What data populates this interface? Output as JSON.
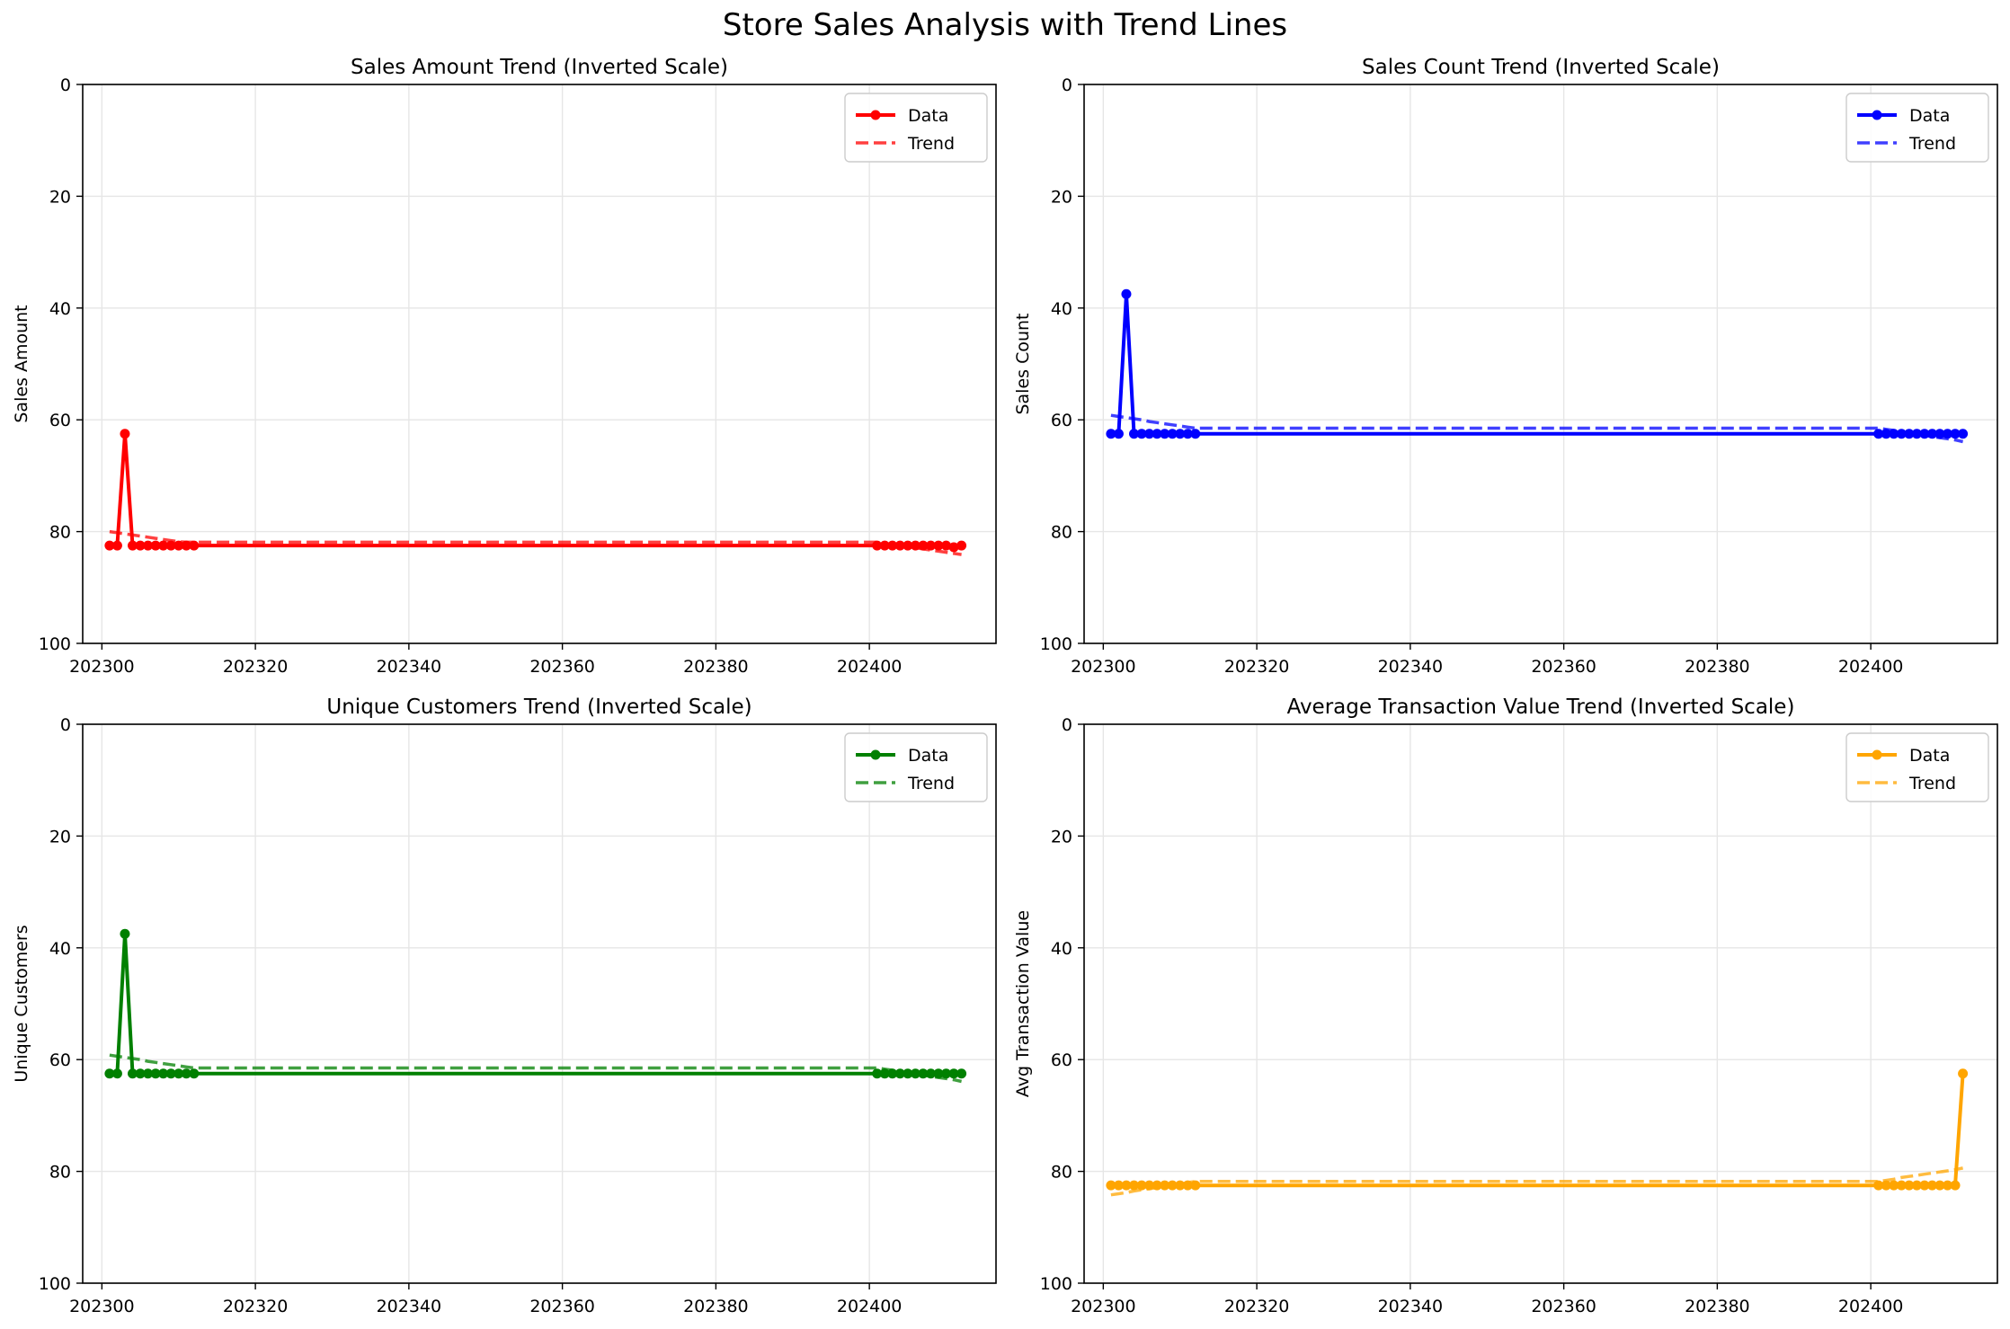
{
  "figure": {
    "title": "Store Sales Analysis with Trend Lines"
  },
  "chart_data": [
    {
      "type": "line",
      "title": "Sales Amount Trend (Inverted Scale)",
      "xlabel": "",
      "ylabel": "Sales Amount",
      "ylim": [
        100,
        0
      ],
      "y_inverted": true,
      "xlim": [
        202297.5,
        202416.5
      ],
      "xticks": [
        202300,
        202320,
        202340,
        202360,
        202380,
        202400
      ],
      "yticks": [
        0,
        20,
        40,
        60,
        80,
        100
      ],
      "grid": true,
      "legend": "top-right",
      "color": "#ff0000",
      "series": [
        {
          "name": "Data",
          "style": "solid-markers",
          "x": [
            202301,
            202302,
            202303,
            202304,
            202305,
            202306,
            202307,
            202308,
            202309,
            202310,
            202311,
            202312,
            202401,
            202402,
            202403,
            202404,
            202405,
            202406,
            202407,
            202408,
            202409,
            202410,
            202411,
            202412
          ],
          "y": [
            82.5,
            82.5,
            62.5,
            82.5,
            82.5,
            82.5,
            82.5,
            82.5,
            82.5,
            82.5,
            82.5,
            82.5,
            82.5,
            82.5,
            82.5,
            82.5,
            82.5,
            82.5,
            82.5,
            82.5,
            82.5,
            82.5,
            82.8,
            82.5
          ]
        },
        {
          "name": "Trend",
          "style": "dashed",
          "x": [
            202301,
            202302,
            202303,
            202304,
            202305,
            202306,
            202307,
            202308,
            202309,
            202310,
            202311,
            202312,
            202401,
            202402,
            202403,
            202404,
            202405,
            202406,
            202407,
            202408,
            202409,
            202410,
            202411,
            202412
          ],
          "y": [
            80.0,
            80.2,
            80.4,
            80.6,
            80.8,
            81.0,
            81.2,
            81.4,
            81.6,
            81.8,
            81.9,
            81.9,
            81.9,
            82.1,
            82.3,
            82.5,
            82.7,
            82.9,
            83.1,
            83.3,
            83.5,
            83.7,
            83.9,
            84.1
          ]
        }
      ]
    },
    {
      "type": "line",
      "title": "Sales Count Trend (Inverted Scale)",
      "xlabel": "",
      "ylabel": "Sales Count",
      "ylim": [
        100,
        0
      ],
      "y_inverted": true,
      "xlim": [
        202297.5,
        202416.5
      ],
      "xticks": [
        202300,
        202320,
        202340,
        202360,
        202380,
        202400
      ],
      "yticks": [
        0,
        20,
        40,
        60,
        80,
        100
      ],
      "grid": true,
      "legend": "top-right",
      "color": "#0000ff",
      "series": [
        {
          "name": "Data",
          "style": "solid-markers",
          "x": [
            202301,
            202302,
            202303,
            202304,
            202305,
            202306,
            202307,
            202308,
            202309,
            202310,
            202311,
            202312,
            202401,
            202402,
            202403,
            202404,
            202405,
            202406,
            202407,
            202408,
            202409,
            202410,
            202411,
            202412
          ],
          "y": [
            62.5,
            62.5,
            37.5,
            62.5,
            62.5,
            62.5,
            62.5,
            62.5,
            62.5,
            62.5,
            62.5,
            62.5,
            62.5,
            62.5,
            62.5,
            62.5,
            62.5,
            62.5,
            62.5,
            62.5,
            62.5,
            62.5,
            62.5,
            62.5
          ]
        },
        {
          "name": "Trend",
          "style": "dashed",
          "x": [
            202301,
            202302,
            202303,
            202304,
            202305,
            202306,
            202307,
            202308,
            202309,
            202310,
            202311,
            202312,
            202401,
            202402,
            202403,
            202404,
            202405,
            202406,
            202407,
            202408,
            202409,
            202410,
            202411,
            202412
          ],
          "y": [
            59.2,
            59.4,
            59.6,
            59.8,
            60.0,
            60.3,
            60.5,
            60.7,
            60.9,
            61.1,
            61.3,
            61.5,
            61.5,
            61.7,
            61.9,
            62.2,
            62.4,
            62.6,
            62.8,
            63.0,
            63.2,
            63.4,
            63.6,
            63.9
          ]
        }
      ]
    },
    {
      "type": "line",
      "title": "Unique Customers Trend (Inverted Scale)",
      "xlabel": "",
      "ylabel": "Unique Customers",
      "ylim": [
        100,
        0
      ],
      "y_inverted": true,
      "xlim": [
        202297.5,
        202416.5
      ],
      "xticks": [
        202300,
        202320,
        202340,
        202360,
        202380,
        202400
      ],
      "yticks": [
        0,
        20,
        40,
        60,
        80,
        100
      ],
      "grid": true,
      "legend": "top-right",
      "color": "#008000",
      "series": [
        {
          "name": "Data",
          "style": "solid-markers",
          "x": [
            202301,
            202302,
            202303,
            202304,
            202305,
            202306,
            202307,
            202308,
            202309,
            202310,
            202311,
            202312,
            202401,
            202402,
            202403,
            202404,
            202405,
            202406,
            202407,
            202408,
            202409,
            202410,
            202411,
            202412
          ],
          "y": [
            62.5,
            62.5,
            37.5,
            62.5,
            62.5,
            62.5,
            62.5,
            62.5,
            62.5,
            62.5,
            62.5,
            62.5,
            62.5,
            62.5,
            62.5,
            62.5,
            62.5,
            62.5,
            62.5,
            62.5,
            62.5,
            62.5,
            62.5,
            62.5
          ]
        },
        {
          "name": "Trend",
          "style": "dashed",
          "x": [
            202301,
            202302,
            202303,
            202304,
            202305,
            202306,
            202307,
            202308,
            202309,
            202310,
            202311,
            202312,
            202401,
            202402,
            202403,
            202404,
            202405,
            202406,
            202407,
            202408,
            202409,
            202410,
            202411,
            202412
          ],
          "y": [
            59.2,
            59.4,
            59.6,
            59.8,
            60.0,
            60.3,
            60.5,
            60.7,
            60.9,
            61.1,
            61.3,
            61.5,
            61.5,
            61.7,
            61.9,
            62.2,
            62.4,
            62.6,
            62.8,
            63.0,
            63.2,
            63.4,
            63.6,
            63.9
          ]
        }
      ]
    },
    {
      "type": "line",
      "title": "Average Transaction Value Trend (Inverted Scale)",
      "xlabel": "",
      "ylabel": "Avg Transaction Value",
      "ylim": [
        100,
        0
      ],
      "y_inverted": true,
      "xlim": [
        202297.5,
        202416.5
      ],
      "xticks": [
        202300,
        202320,
        202340,
        202360,
        202380,
        202400
      ],
      "yticks": [
        0,
        20,
        40,
        60,
        80,
        100
      ],
      "grid": true,
      "legend": "top-right",
      "color": "#ffa500",
      "series": [
        {
          "name": "Data",
          "style": "solid-markers",
          "x": [
            202301,
            202302,
            202303,
            202304,
            202305,
            202306,
            202307,
            202308,
            202309,
            202310,
            202311,
            202312,
            202401,
            202402,
            202403,
            202404,
            202405,
            202406,
            202407,
            202408,
            202409,
            202410,
            202411,
            202412
          ],
          "y": [
            82.5,
            82.5,
            82.5,
            82.5,
            82.5,
            82.5,
            82.5,
            82.5,
            82.5,
            82.5,
            82.5,
            82.5,
            82.5,
            82.5,
            82.5,
            82.5,
            82.5,
            82.5,
            82.5,
            82.5,
            82.5,
            82.5,
            82.5,
            62.5
          ]
        },
        {
          "name": "Trend",
          "style": "dashed",
          "x": [
            202301,
            202302,
            202303,
            202304,
            202305,
            202306,
            202307,
            202308,
            202309,
            202310,
            202311,
            202312,
            202401,
            202402,
            202403,
            202404,
            202405,
            202406,
            202407,
            202408,
            202409,
            202410,
            202411,
            202412
          ],
          "y": [
            84.2,
            84.0,
            83.8,
            83.5,
            83.3,
            83.1,
            82.9,
            82.7,
            82.5,
            82.3,
            82.0,
            81.8,
            81.8,
            81.6,
            81.4,
            81.1,
            80.9,
            80.7,
            80.5,
            80.3,
            80.1,
            79.9,
            79.7,
            79.4
          ]
        }
      ]
    }
  ]
}
